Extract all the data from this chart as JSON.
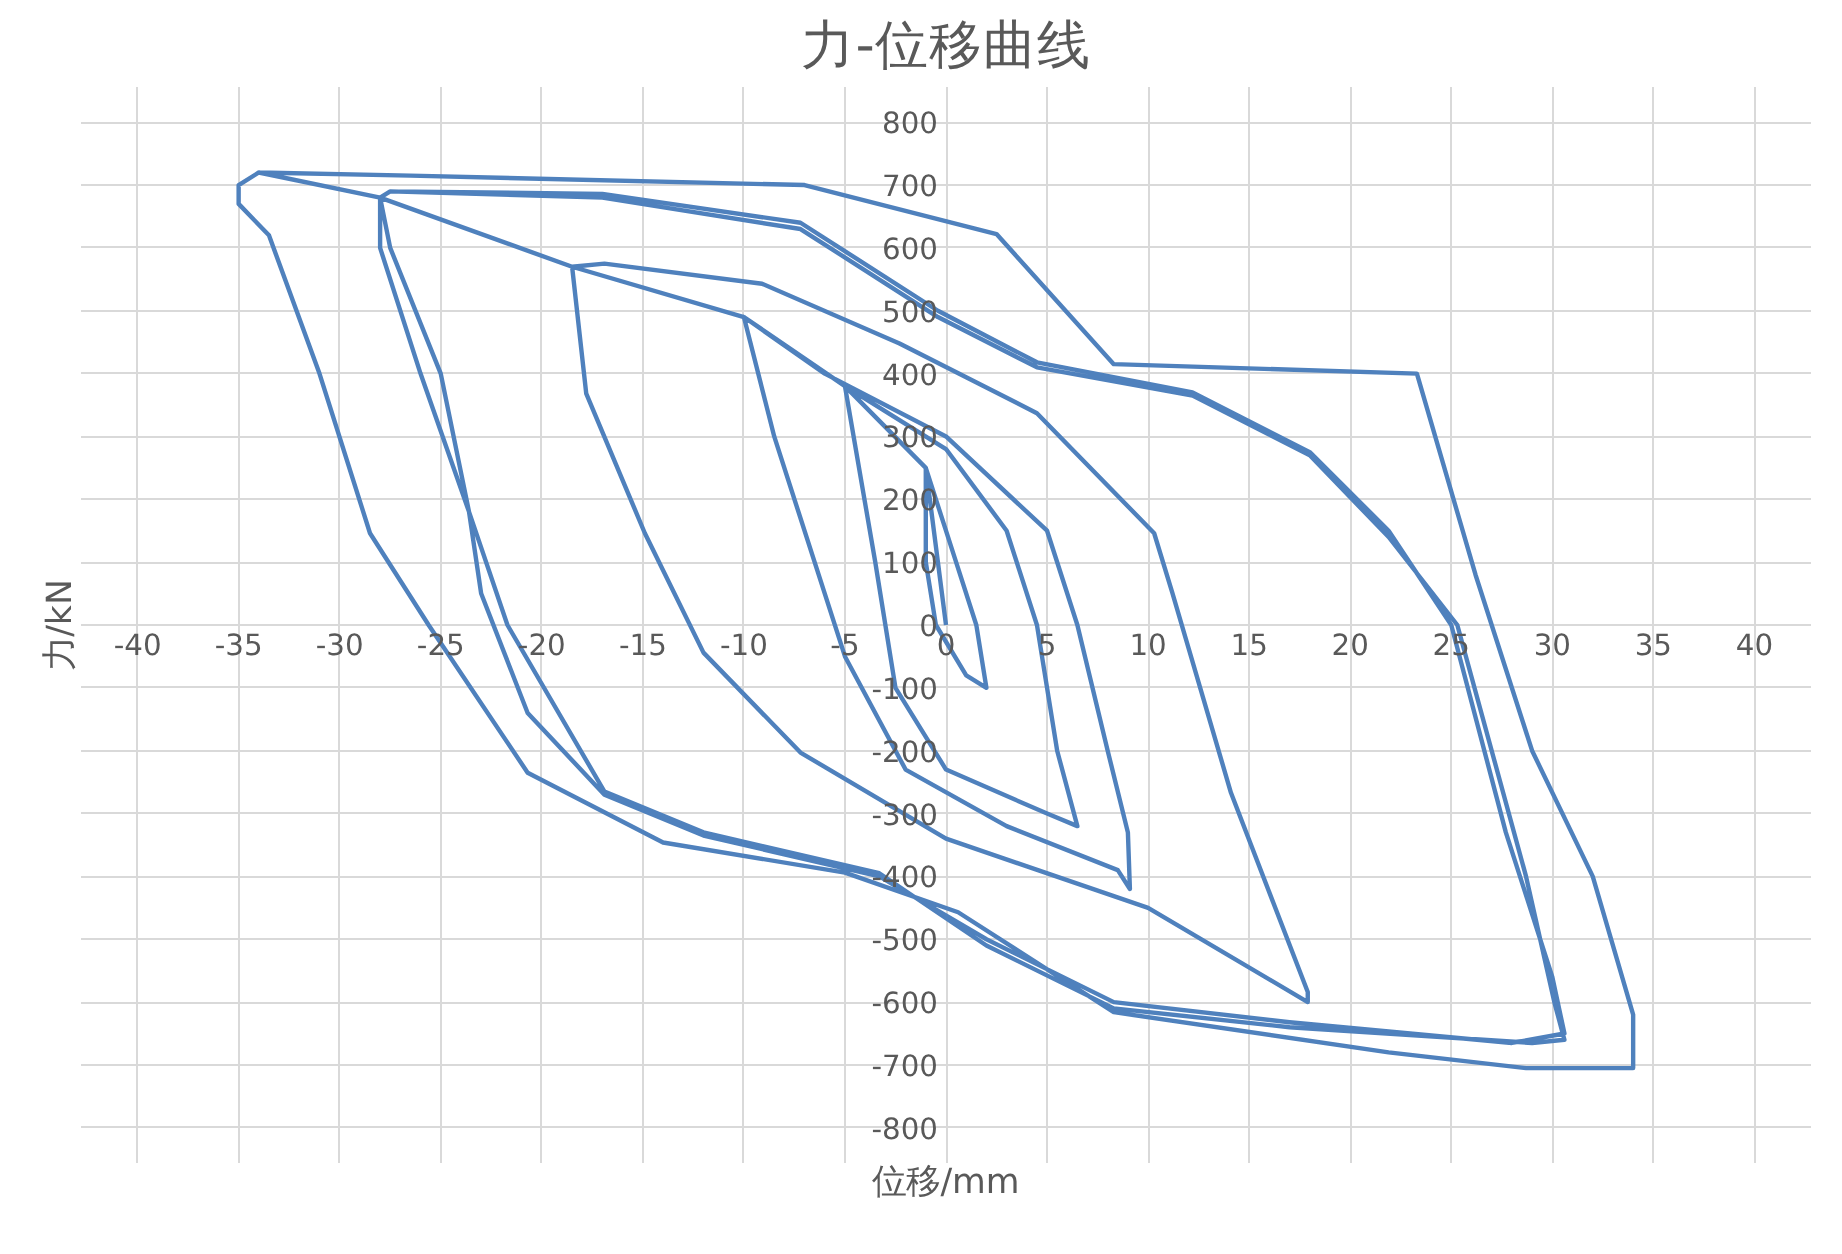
{
  "chart_data": {
    "type": "line",
    "title": "力-位移曲线",
    "xlabel": "位移/mm",
    "ylabel": "力/kN",
    "xlim": [
      -40,
      40
    ],
    "ylim": [
      -800,
      800
    ],
    "xticks": [
      -40,
      -35,
      -30,
      -25,
      -20,
      -15,
      -10,
      -5,
      0,
      5,
      10,
      15,
      20,
      25,
      30,
      35,
      40
    ],
    "yticks": [
      -800,
      -700,
      -600,
      -500,
      -400,
      -300,
      -200,
      -100,
      0,
      100,
      200,
      300,
      400,
      500,
      600,
      700,
      800
    ],
    "grid": true,
    "series": [
      {
        "color": "#4f81bd",
        "x": [
          0,
          -1,
          0.5,
          1.5,
          2,
          1,
          -0.5,
          -1,
          -1,
          -5,
          0,
          3,
          4.5,
          5.5,
          6.5,
          5,
          0,
          -2.5,
          -3.5,
          -5,
          -10,
          -6,
          0,
          5,
          6.5,
          8,
          9,
          9.1,
          8.5,
          3,
          -2,
          -5,
          -6.5,
          -8.5,
          -10,
          -18.5,
          -16.9,
          -9.1,
          -2.3,
          4.5,
          10.3,
          11.2,
          14.1,
          17.9,
          17.9,
          10,
          0,
          -7.2,
          -12,
          -14.9,
          -17.8,
          -18.5,
          -28,
          -27.5,
          -17,
          -7.2,
          -0.4,
          4.5,
          12.2,
          18,
          21.9,
          25,
          27.7,
          30,
          30.6,
          28,
          17,
          8.3,
          2,
          -3.3,
          -12,
          -16.9,
          -20.7,
          -23,
          -23.6,
          -26,
          -28,
          -28,
          -27.5,
          -17,
          -7.2,
          -0.4,
          4.5,
          12.2,
          18,
          21.9,
          25.3,
          28.7,
          30.1,
          30.6,
          29,
          17,
          8.3,
          2,
          -3.3,
          -12,
          -16.9,
          -21.7,
          -23.6,
          -25,
          -27.5,
          -28,
          -34,
          -35,
          -35,
          -33.5,
          -31,
          -28.5,
          -25.6,
          -20.7,
          -14,
          -5,
          0.6,
          8.3,
          21.9,
          28.7,
          34,
          34,
          32,
          29,
          26.2,
          23.3,
          8.3,
          2.5,
          -7,
          -26.5,
          -34
        ],
        "values": [
          0,
          250,
          100,
          0,
          -100,
          -80,
          0,
          100,
          250,
          380,
          280,
          150,
          0,
          -200,
          -320,
          -300,
          -230,
          -100,
          100,
          380,
          490,
          400,
          300,
          150,
          0,
          -200,
          -330,
          -420,
          -390,
          -320,
          -230,
          -50,
          100,
          300,
          490,
          570,
          575,
          543,
          448,
          337,
          146,
          51,
          -267,
          -584,
          -600,
          -450,
          -340,
          -203,
          -44,
          146,
          368,
          570,
          680,
          690,
          686,
          640,
          500,
          418,
          370,
          275,
          150,
          0,
          -330,
          -560,
          -650,
          -665,
          -632,
          -600,
          -500,
          -400,
          -335,
          -270,
          -140,
          50,
          180,
          400,
          600,
          680,
          690,
          680,
          630,
          490,
          410,
          365,
          270,
          140,
          0,
          -400,
          -600,
          -660,
          -665,
          -640,
          -610,
          -510,
          -395,
          -330,
          -265,
          0,
          180,
          400,
          600,
          680,
          720,
          700,
          670,
          620,
          400,
          146,
          0,
          -235,
          -346,
          -394,
          -457,
          -616,
          -680,
          -705,
          -705,
          -620,
          -400,
          -200,
          80,
          400,
          415,
          622,
          700,
          715,
          720
        ]
      }
    ]
  }
}
